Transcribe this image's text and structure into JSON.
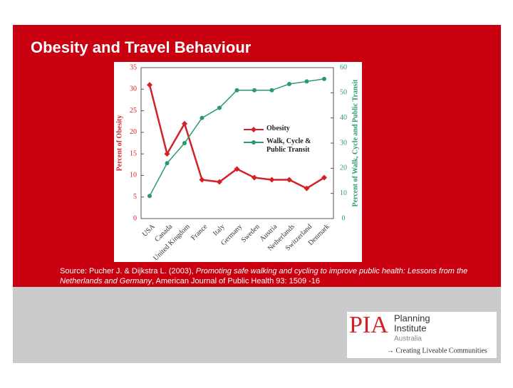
{
  "title": "Obesity and Travel Behaviour",
  "source": {
    "prefix": "Source:  Pucher J. & Dijkstra L. (2003), ",
    "title": "Promoting safe walking and cycling to improve public health: Lessons from the Netherlands and Germany",
    "suffix": ", American Journal of Public Health 93: 1509 -16"
  },
  "logo": {
    "mark": "PIA",
    "line1": "Planning",
    "line2": "Institute",
    "line3": "Australia",
    "tagline": "→ Creating Liveable Communities"
  },
  "chart_data": {
    "type": "line",
    "ylabel": "Percent of Obesity",
    "y2label": "Percent of Walk, Cycle and Public Transit",
    "categories": [
      "USA",
      "Canada",
      "United Kingdom",
      "France",
      "Italy",
      "Germany",
      "Sweden",
      "Austria",
      "Netherlands",
      "Switzerland",
      "Denmark"
    ],
    "series": [
      {
        "name": "Obesity",
        "color": "#d42027",
        "values": [
          31,
          15,
          22,
          9,
          8.5,
          11.5,
          9.5,
          9,
          9,
          7,
          9.5
        ]
      },
      {
        "name": "Walk, Cycle & Public Transit",
        "color": "#2a9a6a",
        "axis": "y2",
        "values": [
          9,
          22,
          30,
          40,
          44,
          51,
          51,
          51,
          53.5,
          54.5,
          55.5
        ]
      }
    ],
    "ylim": [
      0,
      35
    ],
    "yticks": [
      0,
      5,
      10,
      15,
      20,
      25,
      30,
      35
    ],
    "y2lim": [
      0,
      60
    ],
    "y2ticks": [
      0,
      10,
      20,
      30,
      40,
      50,
      60
    ]
  }
}
